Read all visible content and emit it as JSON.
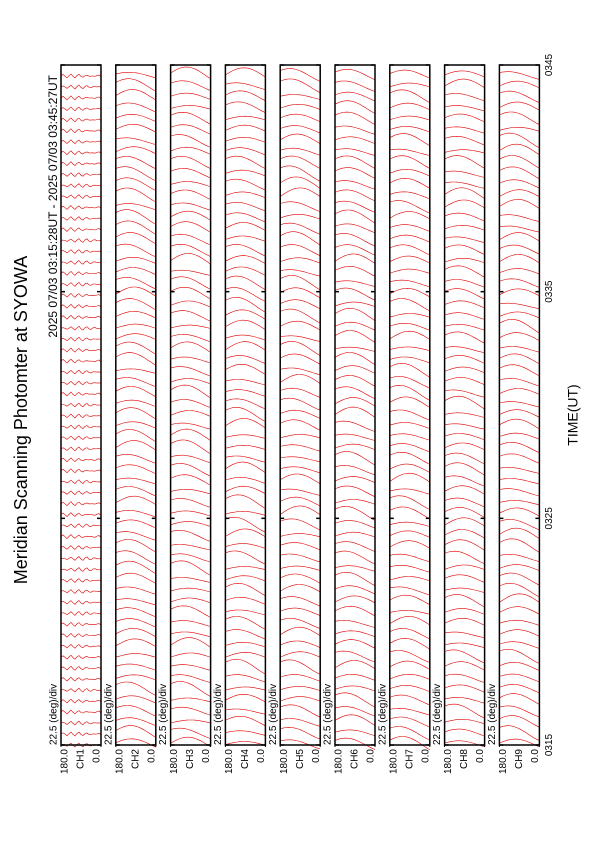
{
  "chart_data": {
    "type": "scan",
    "title": "Meridian Scanning Photomter at SYOWA",
    "subtitle": "2025 07/03 03:15:28UT - 2025 07/03 03:45:27UT",
    "xlabel": "TIME(UT)",
    "xlim": [
      195,
      225
    ],
    "xticks": [
      {
        "value": 195,
        "label": "0315"
      },
      {
        "value": 205,
        "label": "0325"
      },
      {
        "value": 215,
        "label": "0335"
      },
      {
        "value": 225,
        "label": "0345"
      }
    ],
    "color": "#e00000",
    "panels": [
      {
        "channel": "CH1",
        "scale": "22.5 (deg)/div",
        "ylim": [
          0,
          180
        ],
        "yticks": [
          {
            "value": 180,
            "label": "180.0"
          },
          {
            "value": 0,
            "label": "0.0"
          }
        ]
      },
      {
        "channel": "CH2",
        "scale": "22.5 (deg)/div",
        "ylim": [
          0,
          180
        ],
        "yticks": [
          {
            "value": 180,
            "label": "180.0"
          },
          {
            "value": 0,
            "label": "0.0"
          }
        ]
      },
      {
        "channel": "CH3",
        "scale": "22.5 (deg)/div",
        "ylim": [
          0,
          180
        ],
        "yticks": [
          {
            "value": 180,
            "label": "180.0"
          },
          {
            "value": 0,
            "label": "0.0"
          }
        ]
      },
      {
        "channel": "CH4",
        "scale": "22.5 (deg)/div",
        "ylim": [
          0,
          180
        ],
        "yticks": [
          {
            "value": 180,
            "label": "180.0"
          },
          {
            "value": 0,
            "label": "0.0"
          }
        ]
      },
      {
        "channel": "CH5",
        "scale": "22.5 (deg)/div",
        "ylim": [
          0,
          180
        ],
        "yticks": [
          {
            "value": 180,
            "label": "180.0"
          },
          {
            "value": 0,
            "label": "0.0"
          }
        ]
      },
      {
        "channel": "CH6",
        "scale": "22.5 (deg)/div",
        "ylim": [
          0,
          180
        ],
        "yticks": [
          {
            "value": 180,
            "label": "180.0"
          },
          {
            "value": 0,
            "label": "0.0"
          }
        ]
      },
      {
        "channel": "CH7",
        "scale": "22.5 (deg)/div",
        "ylim": [
          0,
          180
        ],
        "yticks": [
          {
            "value": 180,
            "label": "180.0"
          },
          {
            "value": 0,
            "label": "0.0"
          }
        ]
      },
      {
        "channel": "CH8",
        "scale": "22.5 (deg)/div",
        "ylim": [
          0,
          180
        ],
        "yticks": [
          {
            "value": 180,
            "label": "180.0"
          },
          {
            "value": 0,
            "label": "0.0"
          }
        ]
      },
      {
        "channel": "CH9",
        "scale": "22.5 (deg)/div",
        "ylim": [
          0,
          180
        ],
        "yticks": [
          {
            "value": 180,
            "label": "180.0"
          },
          {
            "value": 0,
            "label": "0.0"
          }
        ]
      }
    ]
  }
}
